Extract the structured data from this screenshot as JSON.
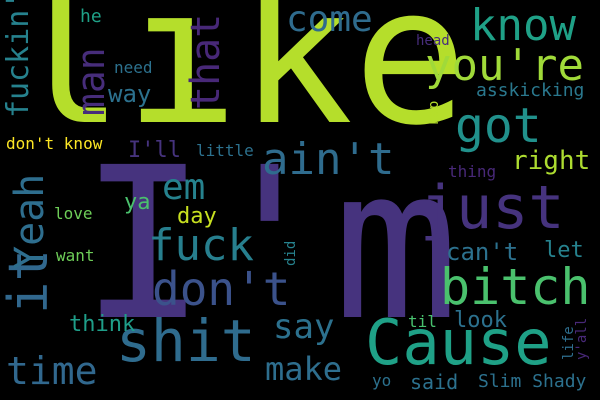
{
  "cloud": {
    "background": "#000000",
    "palette": [
      "#440154",
      "#46337e",
      "#365c8d",
      "#277f8e",
      "#1fa187",
      "#4ac16d",
      "#a0da39",
      "#fde725"
    ],
    "words": [
      {
        "text": "like",
        "color": "#b5de2b"
      },
      {
        "text": "I'm",
        "color": "#46337e"
      },
      {
        "text": "just",
        "color": "#46337e"
      },
      {
        "text": "Cause",
        "color": "#1fa187"
      },
      {
        "text": "shit",
        "color": "#2f6c8e"
      },
      {
        "text": "got",
        "color": "#21918c"
      },
      {
        "text": "bitch",
        "color": "#4ac16d"
      },
      {
        "text": "ain't",
        "color": "#2f6c8e"
      },
      {
        "text": "you're",
        "color": "#a0da39"
      },
      {
        "text": "know",
        "color": "#1fa187"
      },
      {
        "text": "don't",
        "color": "#3b528b"
      },
      {
        "text": "fuck",
        "color": "#277f8e"
      },
      {
        "text": "it",
        "color": "#31688e"
      },
      {
        "text": "Yeah",
        "color": "#2e6e8e"
      },
      {
        "text": "that",
        "color": "#482878"
      },
      {
        "text": "man",
        "color": "#472d7b"
      },
      {
        "text": "come",
        "color": "#2f6c8e"
      },
      {
        "text": "fuckin'",
        "color": "#26828e"
      },
      {
        "text": "time",
        "color": "#31688e"
      },
      {
        "text": "say",
        "color": "#2c718e"
      },
      {
        "text": "make",
        "color": "#2e6e8e"
      },
      {
        "text": "em",
        "color": "#26828e"
      },
      {
        "text": "I'll",
        "color": "#46337e"
      },
      {
        "text": "right",
        "color": "#addc30"
      },
      {
        "text": "way",
        "color": "#2c718e"
      },
      {
        "text": "can't",
        "color": "#2c718e"
      },
      {
        "text": "let",
        "color": "#26828e"
      },
      {
        "text": "day",
        "color": "#c8e020"
      },
      {
        "text": "think",
        "color": "#1f9e89"
      },
      {
        "text": "look",
        "color": "#2c718e"
      },
      {
        "text": "said",
        "color": "#2c718e"
      },
      {
        "text": "Slim Shady",
        "color": "#2c718e"
      },
      {
        "text": "ya",
        "color": "#4ac16d"
      },
      {
        "text": "asskicking",
        "color": "#2a788e"
      },
      {
        "text": "don't know",
        "color": "#fde725"
      },
      {
        "text": "little",
        "color": "#2c718e"
      },
      {
        "text": "need",
        "color": "#2c718e"
      },
      {
        "text": "he",
        "color": "#1fa187"
      },
      {
        "text": "head",
        "color": "#472d7b"
      },
      {
        "text": "rap",
        "color": "#b5de2b"
      },
      {
        "text": "thing",
        "color": "#482878"
      },
      {
        "text": "love",
        "color": "#6ece58"
      },
      {
        "text": "want",
        "color": "#6ece58"
      },
      {
        "text": "did",
        "color": "#26828e"
      },
      {
        "text": "til",
        "color": "#48c16e"
      },
      {
        "text": "life",
        "color": "#2e6e8e"
      },
      {
        "text": "y'all",
        "color": "#482878"
      },
      {
        "text": "yo",
        "color": "#2c718e"
      }
    ]
  }
}
